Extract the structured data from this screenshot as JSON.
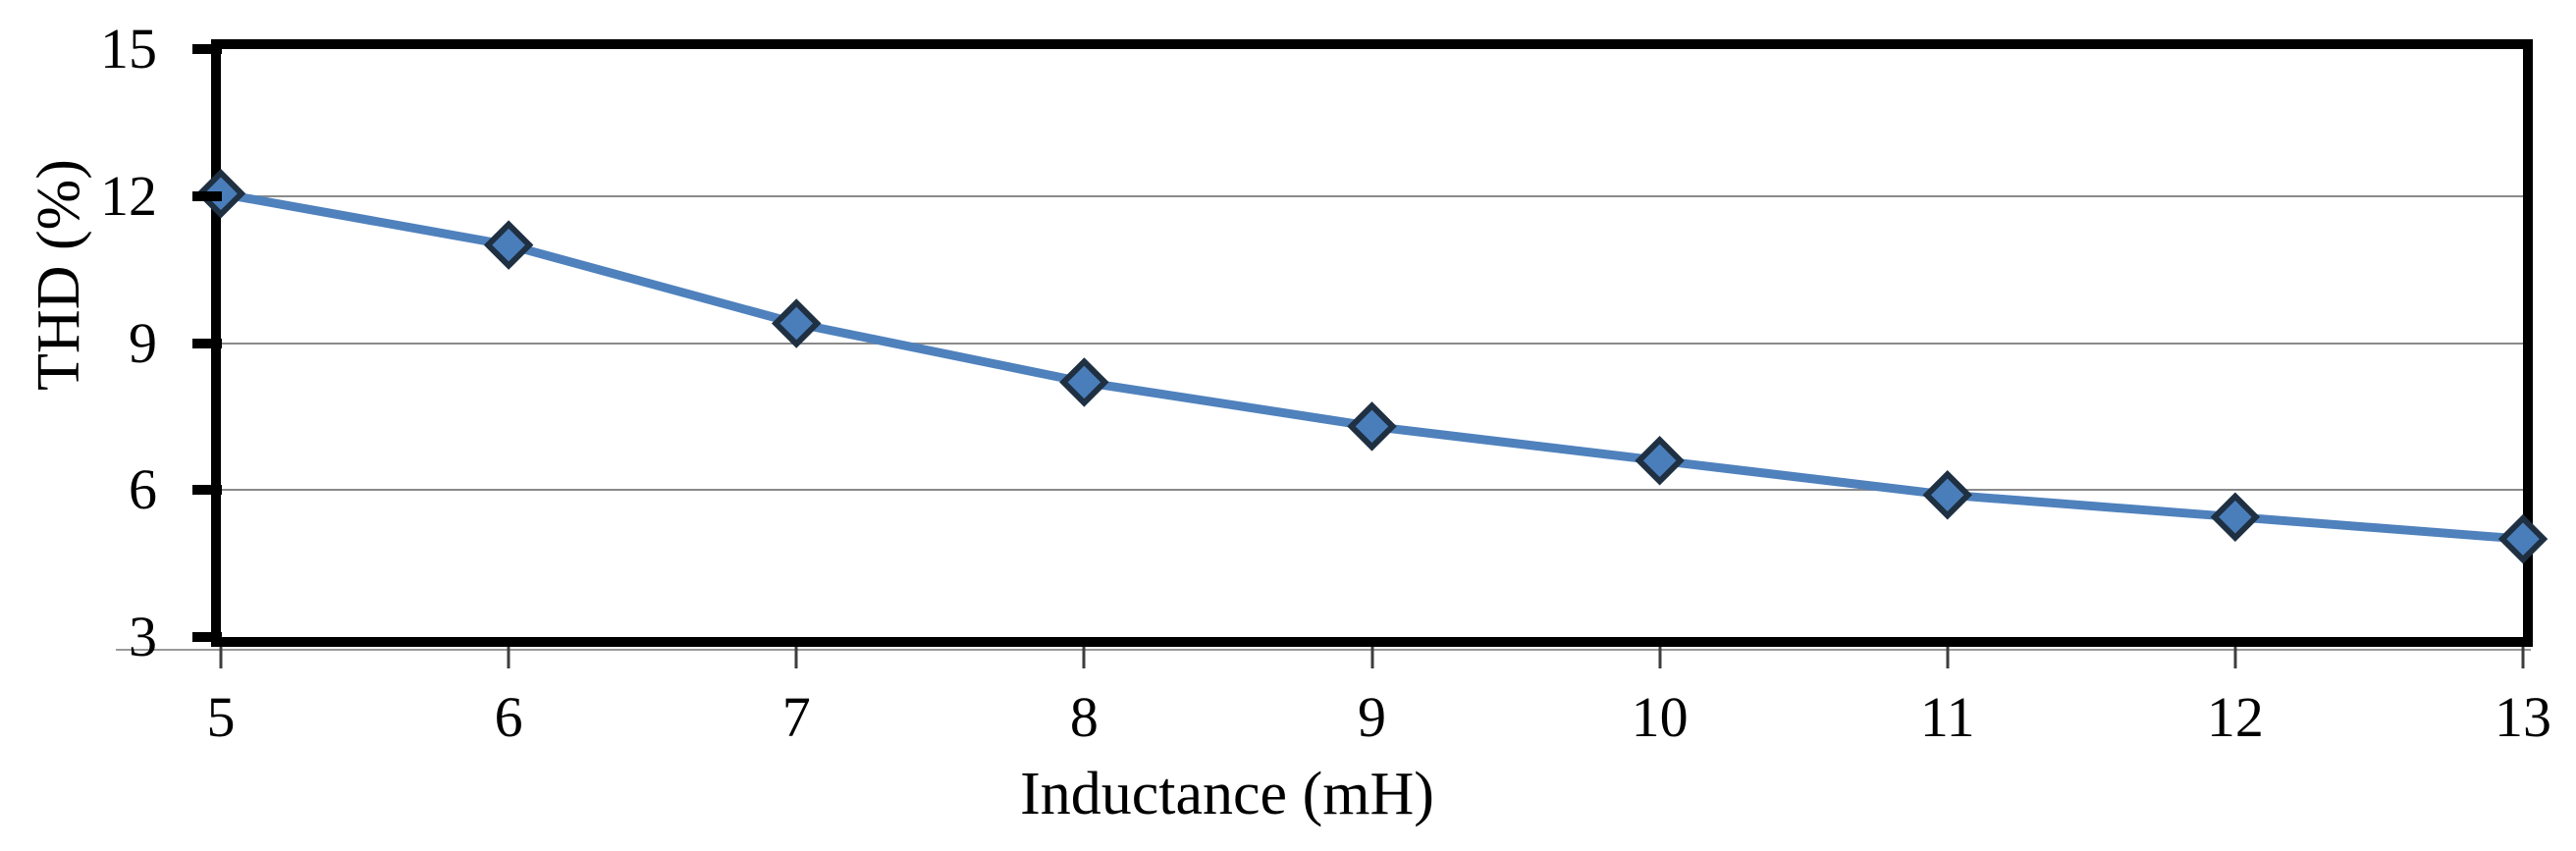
{
  "chart_data": {
    "type": "line",
    "title": "",
    "xlabel": "Inductance  (mH)",
    "ylabel": "THD (%)",
    "x": [
      5,
      6,
      7,
      8,
      9,
      10,
      11,
      12,
      13
    ],
    "series": [
      {
        "name": "THD",
        "values": [
          12.05,
          11.0,
          9.4,
          8.2,
          7.3,
          6.6,
          5.9,
          5.45,
          5.0
        ]
      }
    ],
    "xlim": [
      5,
      13
    ],
    "ylim": [
      3,
      15
    ],
    "xticks": [
      5,
      6,
      7,
      8,
      9,
      10,
      11,
      12,
      13
    ],
    "yticks": [
      15,
      12,
      9,
      6,
      3
    ],
    "gridline_values": [
      12,
      9,
      6
    ],
    "grid": "horizontal",
    "legend": "none",
    "marker": "diamond",
    "colors": {
      "line": "#4F81BD",
      "marker_fill": "#4A7EBB",
      "marker_border": "#1F3042",
      "axis": "#000000",
      "gridline": "#8A8A8A",
      "background": "#FFFFFF",
      "text": "#000000"
    }
  }
}
